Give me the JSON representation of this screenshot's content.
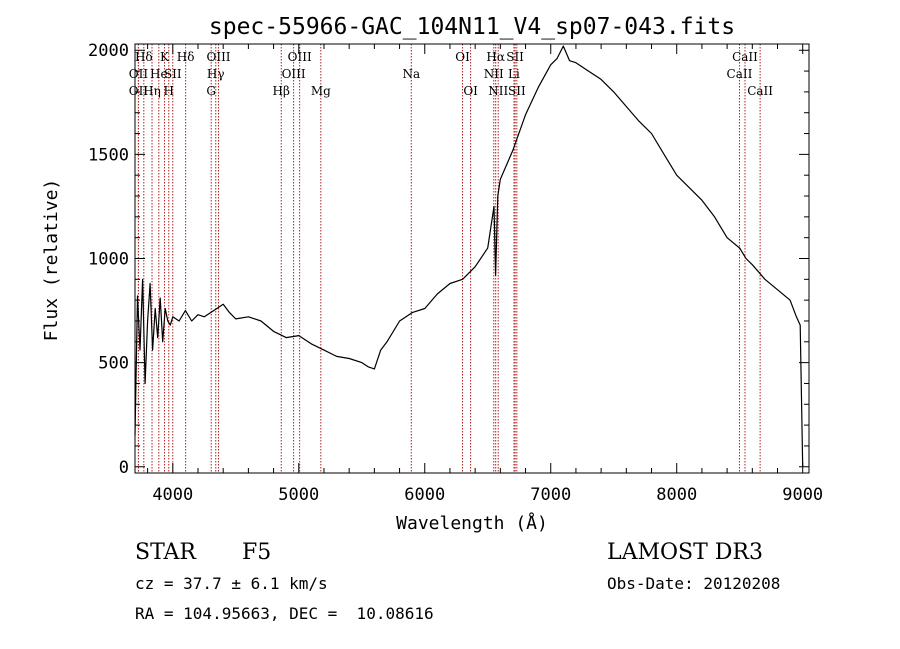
{
  "chart_data": {
    "type": "line",
    "title": "spec-55966-GAC_104N11_V4_sp07-043.fits",
    "xlabel": "Wavelength (Å)",
    "ylabel": "Flux (relative)",
    "xlim": [
      3700,
      9050
    ],
    "ylim": [
      -30,
      2030
    ],
    "x_ticks": [
      4000,
      5000,
      6000,
      7000,
      8000,
      9000
    ],
    "y_ticks": [
      0,
      500,
      1000,
      1500,
      2000
    ],
    "grid": false,
    "series": [
      {
        "name": "flux",
        "color": "#000000",
        "x": [
          3700,
          3720,
          3740,
          3760,
          3780,
          3800,
          3820,
          3840,
          3860,
          3880,
          3900,
          3920,
          3940,
          3960,
          3980,
          4000,
          4050,
          4100,
          4150,
          4200,
          4250,
          4300,
          4350,
          4400,
          4450,
          4500,
          4600,
          4700,
          4800,
          4900,
          5000,
          5100,
          5200,
          5300,
          5400,
          5500,
          5550,
          5600,
          5650,
          5700,
          5800,
          5900,
          6000,
          6100,
          6200,
          6300,
          6400,
          6500,
          6550,
          6562,
          6580,
          6600,
          6700,
          6800,
          6900,
          7000,
          7050,
          7100,
          7150,
          7200,
          7300,
          7400,
          7500,
          7600,
          7700,
          7800,
          7900,
          8000,
          8100,
          8200,
          8300,
          8400,
          8500,
          8550,
          8600,
          8700,
          8800,
          8900,
          8950,
          8980,
          9000
        ],
        "y": [
          150,
          820,
          560,
          900,
          400,
          700,
          880,
          560,
          760,
          620,
          810,
          600,
          760,
          700,
          680,
          720,
          700,
          750,
          700,
          730,
          720,
          740,
          760,
          780,
          740,
          710,
          720,
          700,
          650,
          620,
          630,
          590,
          560,
          530,
          520,
          500,
          480,
          470,
          560,
          600,
          700,
          740,
          760,
          830,
          880,
          900,
          960,
          1050,
          1250,
          920,
          1300,
          1380,
          1520,
          1690,
          1820,
          1930,
          1960,
          2020,
          1950,
          1940,
          1900,
          1860,
          1800,
          1730,
          1660,
          1600,
          1500,
          1400,
          1340,
          1280,
          1200,
          1100,
          1050,
          1000,
          970,
          900,
          850,
          800,
          720,
          680,
          0
        ]
      }
    ],
    "lines": [
      {
        "label": "Hδ",
        "wavelength": 3770,
        "row": 1
      },
      {
        "label": "OII",
        "wavelength": 3727,
        "row": 2
      },
      {
        "label": "OII",
        "wavelength": 3727,
        "row": 3
      },
      {
        "label": "He",
        "wavelength": 3889,
        "row": 2
      },
      {
        "label": "Hη",
        "wavelength": 3835,
        "row": 3
      },
      {
        "label": "K",
        "wavelength": 3934,
        "row": 1
      },
      {
        "label": "SII",
        "wavelength": 4000,
        "row": 2
      },
      {
        "label": "H",
        "wavelength": 3968,
        "row": 3
      },
      {
        "label": "Hδ",
        "wavelength": 4102,
        "row": 1
      },
      {
        "label": "OIII",
        "wavelength": 4363,
        "row": 1
      },
      {
        "label": "Hγ",
        "wavelength": 4341,
        "row": 2
      },
      {
        "label": "G",
        "wavelength": 4305,
        "row": 3
      },
      {
        "label": "OIII",
        "wavelength": 5007,
        "row": 1
      },
      {
        "label": "OIII",
        "wavelength": 4959,
        "row": 2
      },
      {
        "label": "Hβ",
        "wavelength": 4861,
        "row": 3
      },
      {
        "label": "Mg",
        "wavelength": 5175,
        "row": 3
      },
      {
        "label": "Na",
        "wavelength": 5893,
        "row": 2
      },
      {
        "label": "OI",
        "wavelength": 6300,
        "row": 1
      },
      {
        "label": "OI",
        "wavelength": 6364,
        "row": 3
      },
      {
        "label": "Hα",
        "wavelength": 6563,
        "row": 1
      },
      {
        "label": "NII",
        "wavelength": 6548,
        "row": 2
      },
      {
        "label": "NII",
        "wavelength": 6583,
        "row": 3
      },
      {
        "label": "SII",
        "wavelength": 6717,
        "row": 1
      },
      {
        "label": "Li",
        "wavelength": 6708,
        "row": 2
      },
      {
        "label": "SII",
        "wavelength": 6731,
        "row": 3
      },
      {
        "label": "CaII",
        "wavelength": 8542,
        "row": 1
      },
      {
        "label": "CaII",
        "wavelength": 8498,
        "row": 2
      },
      {
        "label": "CaII",
        "wavelength": 8662,
        "row": 3
      }
    ]
  },
  "info": {
    "object_class": "STAR",
    "subclass": "F5",
    "survey": "LAMOST DR3",
    "cz": "cz = 37.7 ± 6.1 km/s",
    "obs_date": "Obs-Date: 20120208",
    "coords": "RA = 104.95663, DEC =  10.08616"
  }
}
